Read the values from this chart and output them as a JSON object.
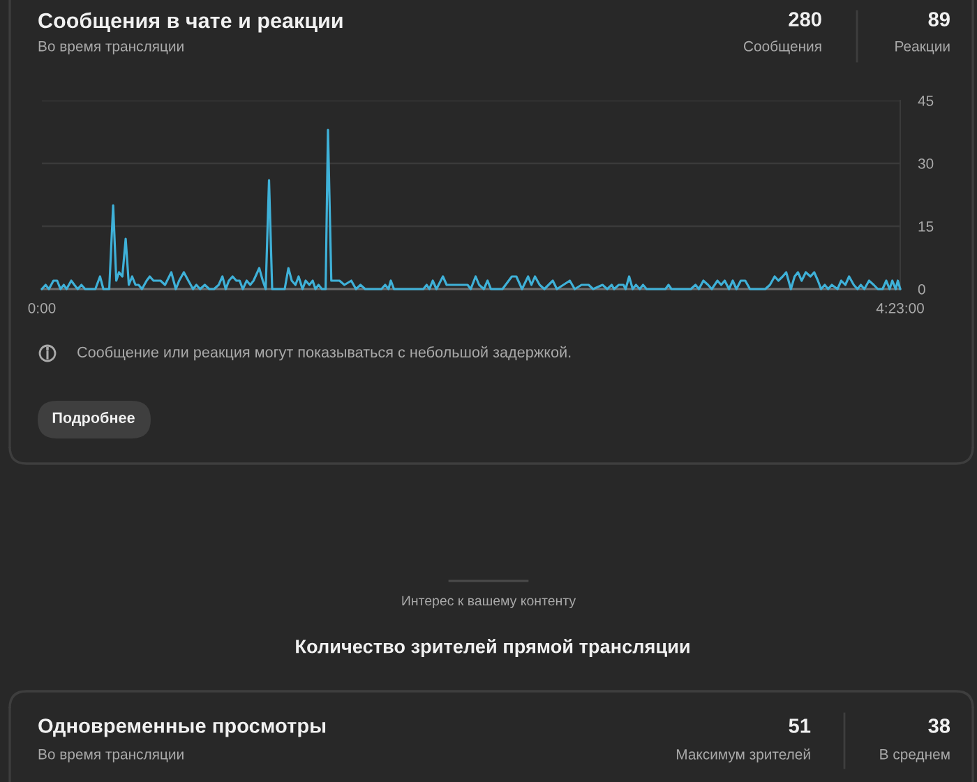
{
  "chart_data": {
    "type": "line",
    "title": "Сообщения в чате и реакции",
    "subtitle": "Во время трансляции",
    "x": [
      0,
      0.019,
      0.036,
      0.059,
      0.078,
      0.095,
      0.112,
      0.126,
      0.15,
      0.166,
      0.183,
      0.202,
      0.221,
      0.273,
      0.297,
      0.314,
      0.344,
      0.364,
      0.38,
      0.394,
      0.411,
      0.428,
      0.444,
      0.461,
      0.478,
      0.494,
      0.511,
      0.535,
      0.551,
      0.57,
      0.606,
      0.629,
      0.661,
      0.684,
      0.701,
      0.725,
      0.748,
      0.772,
      0.789,
      0.808,
      0.832,
      0.855,
      0.879,
      0.903,
      0.922,
      0.939,
      0.955,
      0.974,
      0.993,
      1.01,
      1.026,
      1.046,
      1.064,
      1.081,
      1.11,
      1.128,
      1.143,
      1.16,
      1.176,
      1.24,
      1.259,
      1.276,
      1.295,
      1.311,
      1.331,
      1.347,
      1.366,
      1.383,
      1.397,
      1.413,
      1.43,
      1.449,
      1.461,
      1.478,
      1.52,
      1.545,
      1.58,
      1.604,
      1.627,
      1.651,
      1.734,
      1.753,
      1.77,
      1.782,
      1.798,
      1.948,
      1.965,
      1.979,
      1.996,
      2.015,
      2.048,
      2.067,
      2.174,
      2.19,
      2.215,
      2.233,
      2.257,
      2.276,
      2.293,
      2.352,
      2.4,
      2.423,
      2.452,
      2.483,
      2.5,
      2.518,
      2.542,
      2.566,
      2.609,
      2.63,
      2.696,
      2.721,
      2.756,
      2.792,
      2.815,
      2.863,
      2.887,
      2.91,
      2.922,
      2.946,
      2.97,
      2.981,
      2.999,
      3.017,
      3.034,
      3.053,
      3.07,
      3.088,
      3.184,
      3.2,
      3.215,
      3.314,
      3.338,
      3.355,
      3.378,
      3.402,
      3.421,
      3.45,
      3.469,
      3.487,
      3.509,
      3.528,
      3.547,
      3.569,
      3.592,
      3.616,
      3.694,
      3.718,
      3.742,
      3.761,
      3.783,
      3.801,
      3.825,
      3.844,
      3.861,
      3.88,
      3.901,
      3.925,
      3.944,
      3.963,
      3.979,
      3.998,
      4.015,
      4.034,
      4.063,
      4.082,
      4.103,
      4.122,
      4.146,
      4.165,
      4.182,
      4.2,
      4.224,
      4.248,
      4.269,
      4.293,
      4.312,
      4.329,
      4.343,
      4.36,
      4.371,
      4.383333
    ],
    "values": [
      0,
      1,
      0,
      2,
      2,
      0,
      1,
      0,
      2,
      1,
      0,
      1,
      0,
      0,
      3,
      0,
      0,
      20,
      2,
      4,
      3,
      12,
      1,
      3,
      1,
      1,
      0,
      2,
      3,
      2,
      2,
      1,
      4,
      0,
      2,
      4,
      2,
      0,
      1,
      0,
      1,
      0,
      0,
      1,
      3,
      0,
      2,
      3,
      2,
      2,
      0,
      2,
      1,
      2,
      5,
      2,
      0,
      26,
      0,
      0,
      5,
      2,
      1,
      3,
      0,
      2,
      1,
      2,
      0,
      1,
      0,
      0,
      38,
      2,
      2,
      1,
      2,
      0,
      1,
      0,
      0,
      1,
      0,
      2,
      0,
      0,
      1,
      0,
      2,
      0,
      3,
      1,
      1,
      0,
      3,
      1,
      0,
      2,
      0,
      0,
      3,
      3,
      0,
      3,
      1,
      3,
      1,
      0,
      2,
      0,
      2,
      0,
      1,
      1,
      0,
      1,
      0,
      1,
      0,
      1,
      1,
      0,
      3,
      0,
      1,
      0,
      1,
      0,
      0,
      1,
      0,
      0,
      1,
      0,
      2,
      1,
      0,
      2,
      1,
      2,
      0,
      2,
      0,
      2,
      2,
      0,
      0,
      1,
      3,
      2,
      3,
      4,
      0,
      3,
      4,
      2,
      4,
      3,
      4,
      2,
      0,
      1,
      0,
      1,
      0,
      2,
      1,
      3,
      1,
      0,
      1,
      0,
      2,
      1,
      0,
      0,
      2,
      0,
      2,
      0,
      2,
      0
    ],
    "color": "#3fb1d8",
    "xlim": [
      0,
      4.383333
    ],
    "xticks": [
      {
        "value": 0,
        "label": "0:00"
      },
      {
        "value": 4.383333,
        "label": "4:23:00"
      }
    ],
    "ylim": [
      0,
      45
    ],
    "yticks": [
      0,
      15,
      30,
      45
    ],
    "grid": "y",
    "annotations": [
      "280",
      "Сообщения",
      "89",
      "Реакции",
      "Сообщение или реакция могут показываться с небольшой задержкой.",
      "Подробнее",
      "Интерес к вашему контенту",
      "Количество зрителей прямой трансляции",
      "Одновременные просмотры",
      "Во время трансляции",
      "51",
      "Максимум зрителей",
      "38",
      "В среднем"
    ]
  }
}
